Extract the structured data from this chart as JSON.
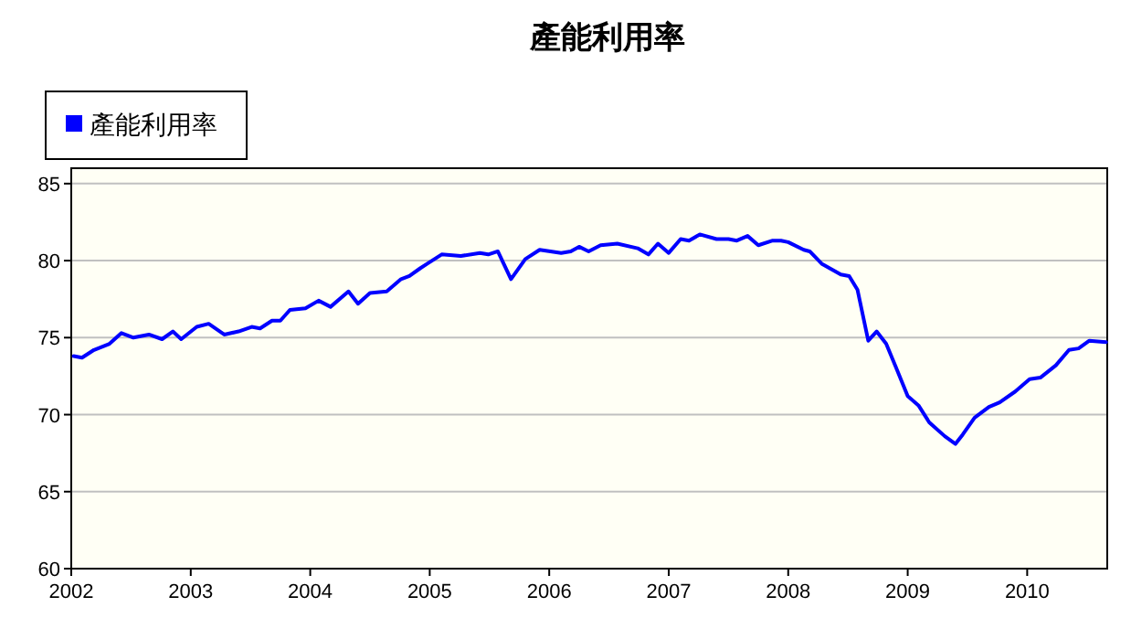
{
  "chart_data": {
    "type": "line",
    "title": "產能利用率",
    "series": [
      {
        "name": "產能利用率",
        "color": "#0000ff",
        "x": [
          2002.02,
          2002.09,
          2002.19,
          2002.32,
          2002.42,
          2002.52,
          2002.65,
          2002.76,
          2002.85,
          2002.92,
          2003.05,
          2003.15,
          2003.28,
          2003.4,
          2003.51,
          2003.58,
          2003.68,
          2003.75,
          2003.83,
          2003.96,
          2004.07,
          2004.17,
          2004.32,
          2004.4,
          2004.5,
          2004.64,
          2004.76,
          2004.83,
          2004.92,
          2004.98,
          2005.1,
          2005.26,
          2005.42,
          2005.49,
          2005.57,
          2005.68,
          2005.8,
          2005.92,
          2006.1,
          2006.18,
          2006.25,
          2006.33,
          2006.43,
          2006.57,
          2006.74,
          2006.83,
          2006.91,
          2007.0,
          2007.1,
          2007.17,
          2007.26,
          2007.4,
          2007.5,
          2007.57,
          2007.66,
          2007.75,
          2007.87,
          2007.94,
          2008.0,
          2008.13,
          2008.18,
          2008.28,
          2008.44,
          2008.51,
          2008.58,
          2008.67,
          2008.74,
          2008.82,
          2008.9,
          2009.0,
          2009.09,
          2009.18,
          2009.31,
          2009.4,
          2009.46,
          2009.56,
          2009.68,
          2009.77,
          2009.9,
          2010.02,
          2010.11,
          2010.24,
          2010.35,
          2010.43,
          2010.52,
          2010.66
        ],
        "values": [
          73.8,
          73.7,
          74.2,
          74.6,
          75.3,
          75.0,
          75.2,
          74.9,
          75.4,
          74.9,
          75.7,
          75.9,
          75.2,
          75.4,
          75.7,
          75.6,
          76.1,
          76.1,
          76.8,
          76.9,
          77.4,
          77.0,
          78.0,
          77.2,
          77.9,
          78.0,
          78.8,
          79.0,
          79.5,
          79.8,
          80.4,
          80.3,
          80.5,
          80.4,
          80.6,
          78.8,
          80.1,
          80.7,
          80.5,
          80.6,
          80.9,
          80.6,
          81.0,
          81.1,
          80.8,
          80.4,
          81.1,
          80.5,
          81.4,
          81.3,
          81.7,
          81.4,
          81.4,
          81.3,
          81.6,
          81.0,
          81.3,
          81.3,
          81.2,
          80.7,
          80.6,
          79.8,
          79.1,
          79.0,
          78.1,
          74.8,
          75.4,
          74.6,
          73.1,
          71.2,
          70.6,
          69.5,
          68.6,
          68.1,
          68.7,
          69.8,
          70.5,
          70.8,
          71.5,
          72.3,
          72.4,
          73.2,
          74.2,
          74.3,
          74.8,
          74.7
        ]
      }
    ],
    "xlim": [
      2002,
      2010.67
    ],
    "xticks": [
      2002,
      2003,
      2004,
      2005,
      2006,
      2007,
      2008,
      2009,
      2010
    ],
    "ylim": [
      60,
      86
    ],
    "yticks": [
      60,
      65,
      70,
      75,
      80,
      85
    ],
    "grid": "y",
    "legend": "top left",
    "marker": "none",
    "line_style": "solid"
  }
}
